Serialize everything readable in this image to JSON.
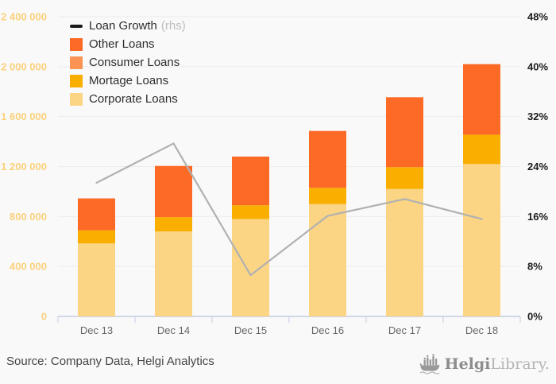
{
  "chart_data": {
    "type": "bar",
    "subtype": "stacked-bars-with-line-overlay",
    "categories": [
      "Dec 13",
      "Dec 14",
      "Dec 15",
      "Dec 16",
      "Dec 17",
      "Dec 18"
    ],
    "series": [
      {
        "name": "Corporate Loans",
        "type": "bar",
        "color": "#fbd584",
        "values": [
          585000,
          680000,
          780000,
          900000,
          1020000,
          1220000
        ]
      },
      {
        "name": "Mortage Loans",
        "type": "bar",
        "color": "#f9ae00",
        "values": [
          105000,
          115000,
          110000,
          130000,
          175000,
          235000
        ]
      },
      {
        "name": "Consumer Loans",
        "type": "bar",
        "color": "#fb9355",
        "values": [
          0,
          0,
          0,
          0,
          0,
          0
        ]
      },
      {
        "name": "Other Loans",
        "type": "bar",
        "color": "#fc6a26",
        "values": [
          255000,
          410000,
          390000,
          455000,
          560000,
          565000
        ]
      },
      {
        "name": "Loan Growth",
        "type": "line",
        "axis": "right",
        "color": "#b1b1b1",
        "values": [
          21.4,
          27.7,
          6.6,
          16.1,
          18.8,
          15.6
        ]
      }
    ],
    "bar_totals": [
      945000,
      1205000,
      1280000,
      1485000,
      1755000,
      2020000
    ],
    "left_axis": {
      "min": 0,
      "max": 2400000,
      "tick_values": [
        2400000,
        2000000,
        1600000,
        1200000,
        800000,
        400000,
        0
      ],
      "tick_labels": [
        "2 400 000",
        "2 000 000",
        "1 600 000",
        "1 200 000",
        "800 000",
        "400 000",
        "0"
      ],
      "label_color": "#fbd17c"
    },
    "right_axis": {
      "min": 0,
      "max": 48,
      "tick_values": [
        48,
        40,
        32,
        24,
        16,
        8,
        0
      ],
      "tick_labels": [
        "48%",
        "40%",
        "32%",
        "24%",
        "16%",
        "8%",
        "0%"
      ],
      "label_color": "#1c1c1c"
    },
    "x_axis": {
      "label_color": "#666666",
      "line_color": "#c6cce2"
    },
    "grid": {
      "on": true,
      "color": "#ececec"
    },
    "legend_position": "top-left",
    "title": ""
  },
  "legend": {
    "items": [
      {
        "label": "Loan Growth",
        "note": "(rhs)",
        "color": "#1a1a1a",
        "shape": "dash"
      },
      {
        "label": "Other Loans",
        "note": "",
        "color": "#fc6a26",
        "shape": "square"
      },
      {
        "label": "Consumer Loans",
        "note": "",
        "color": "#fb9355",
        "shape": "square"
      },
      {
        "label": "Mortage Loans",
        "note": "",
        "color": "#f9ae00",
        "shape": "square"
      },
      {
        "label": "Corporate Loans",
        "note": "",
        "color": "#fbd584",
        "shape": "square"
      }
    ]
  },
  "footer": {
    "source": "Source: Company Data, Helgi Analytics",
    "logo": {
      "brand_primary": "Helgi",
      "brand_secondary": "Library."
    }
  }
}
